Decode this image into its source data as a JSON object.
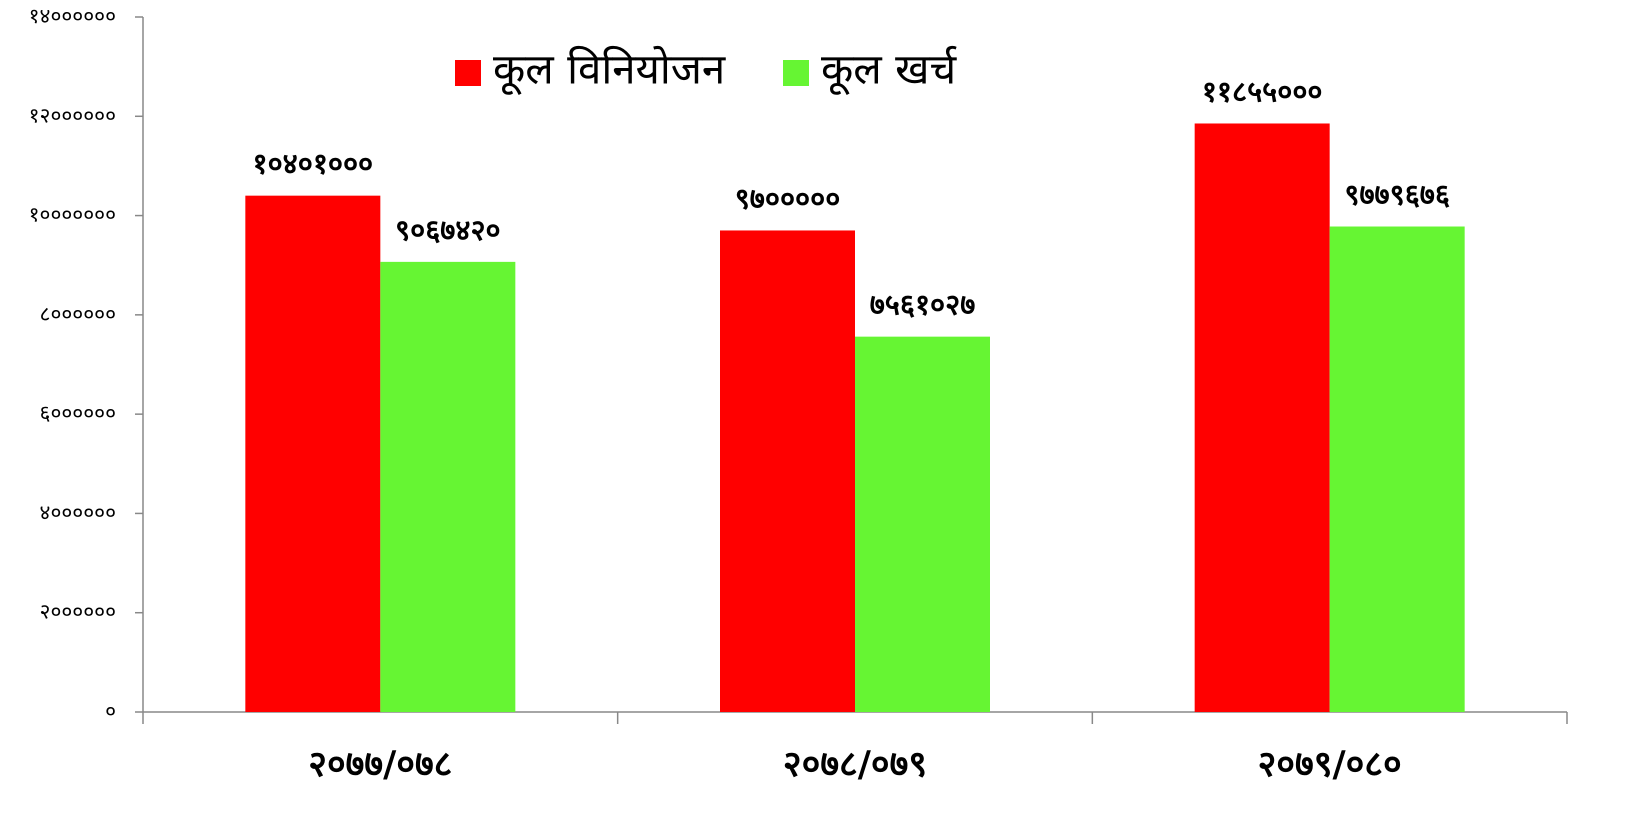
{
  "chart_data": {
    "type": "bar",
    "categories": [
      "२०७७/०७८",
      "२०७८/०७९",
      "२०७९/०८०"
    ],
    "series": [
      {
        "name": "कूल विनियोजन",
        "color": "#ff0000",
        "values": [
          10401000,
          9700000,
          11855000
        ],
        "value_labels": [
          "१०४०१०००",
          "९७०००००",
          "११८५५०००"
        ]
      },
      {
        "name": "कूल खर्च",
        "color": "#66f533",
        "values": [
          9067420,
          7561027,
          9779676
        ],
        "value_labels": [
          "९०६७४२०",
          "७५६१०२७",
          "९७७९६७६"
        ]
      }
    ],
    "ylim": [
      0,
      14000000
    ],
    "yticks": [
      {
        "value": 0,
        "label": "०"
      },
      {
        "value": 2000000,
        "label": "२००००००"
      },
      {
        "value": 4000000,
        "label": "४००००००"
      },
      {
        "value": 6000000,
        "label": "६००००००"
      },
      {
        "value": 8000000,
        "label": "८००००००"
      },
      {
        "value": 10000000,
        "label": "१०००००००"
      },
      {
        "value": 12000000,
        "label": "१२००००००"
      },
      {
        "value": 14000000,
        "label": "१४००००००"
      }
    ],
    "legend": "top",
    "grid": false
  }
}
